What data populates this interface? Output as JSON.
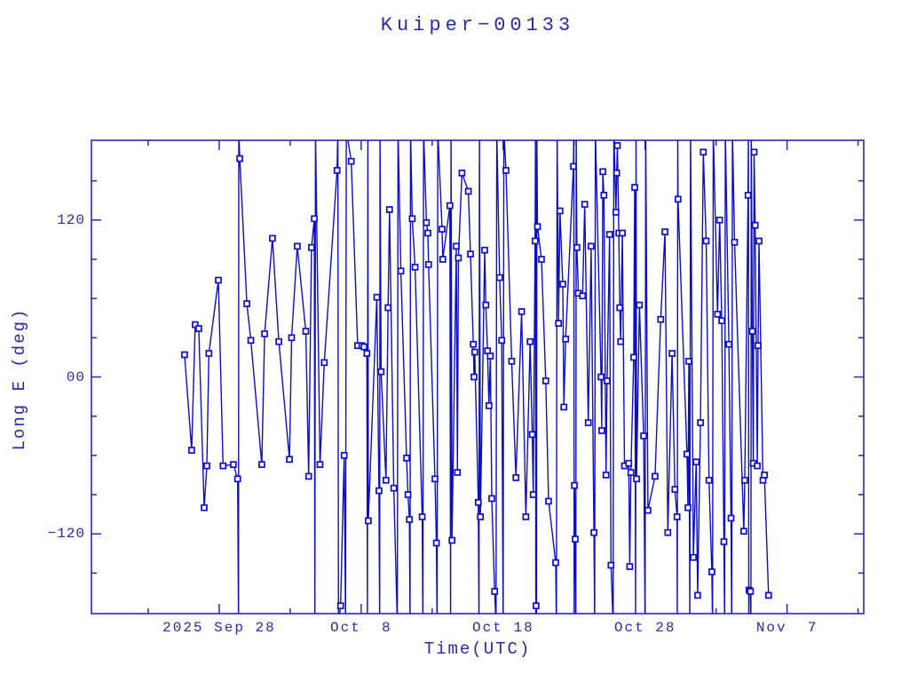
{
  "title": "Kuiper−00133",
  "colors": {
    "ink": "#2a2aa2",
    "data_line": "#0d0dc6",
    "marker_fill": "#ffffff",
    "background": "#ffffff"
  },
  "chart_data": {
    "type": "line",
    "title": "Kuiper−00133",
    "xlabel": "Time(UTC)",
    "ylabel": "Long E (deg)",
    "grid": false,
    "legend": false,
    "marker": "open-square",
    "x_unit": "days from left axis edge (2025 Sep 19)",
    "xlim": [
      0,
      54.4
    ],
    "ylim": [
      -181,
      181
    ],
    "wrap_boundary_deg": 180,
    "x_major_ticks": [
      {
        "day": 9,
        "label": "2025 Sep 28"
      },
      {
        "day": 19,
        "label": "Oct  8"
      },
      {
        "day": 29,
        "label": "Oct 18"
      },
      {
        "day": 39,
        "label": "Oct 28"
      },
      {
        "day": 49,
        "label": "Nov  7"
      }
    ],
    "x_minor_tick_days": [
      4,
      14,
      24,
      34,
      44,
      54
    ],
    "y_major_ticks": [
      {
        "value": 120,
        "label": "120"
      },
      {
        "value": 0,
        "label": "00"
      },
      {
        "value": -120,
        "label": "−120"
      }
    ],
    "y_minor_tick_values": [
      150,
      90,
      60,
      30,
      -30,
      -60,
      -90,
      -150
    ],
    "points": [
      [
        6.56,
        17
      ],
      [
        7.06,
        -56
      ],
      [
        7.31,
        40
      ],
      [
        7.56,
        37
      ],
      [
        7.94,
        -100
      ],
      [
        8.13,
        -68
      ],
      [
        8.27,
        18
      ],
      [
        8.94,
        74
      ],
      [
        9.27,
        -68
      ],
      [
        10.0,
        -67
      ],
      [
        10.3,
        -78
      ],
      [
        10.36,
        -189
      ],
      [
        10.38,
        189
      ],
      [
        10.45,
        167
      ],
      [
        10.95,
        56
      ],
      [
        11.23,
        28
      ],
      [
        12.0,
        -67
      ],
      [
        12.2,
        33
      ],
      [
        12.75,
        106
      ],
      [
        13.2,
        27
      ],
      [
        13.95,
        -63
      ],
      [
        14.1,
        30
      ],
      [
        14.5,
        100
      ],
      [
        15.1,
        35
      ],
      [
        15.3,
        -76
      ],
      [
        15.5,
        99
      ],
      [
        15.7,
        121
      ],
      [
        15.74,
        -189
      ],
      [
        15.78,
        189
      ],
      [
        16.1,
        -67
      ],
      [
        16.4,
        11
      ],
      [
        17.3,
        158
      ],
      [
        17.36,
        189
      ],
      [
        17.4,
        -189
      ],
      [
        17.55,
        -175
      ],
      [
        17.8,
        -60
      ],
      [
        17.9,
        -189
      ],
      [
        17.95,
        189
      ],
      [
        18.3,
        165
      ],
      [
        18.75,
        24
      ],
      [
        19.05,
        24
      ],
      [
        19.2,
        23
      ],
      [
        19.4,
        18
      ],
      [
        19.44,
        -189
      ],
      [
        19.47,
        189
      ],
      [
        19.5,
        -110
      ],
      [
        20.1,
        61
      ],
      [
        20.25,
        -87
      ],
      [
        20.3,
        -189
      ],
      [
        20.33,
        189
      ],
      [
        20.4,
        4
      ],
      [
        20.75,
        -79
      ],
      [
        20.9,
        53
      ],
      [
        21.0,
        128
      ],
      [
        21.3,
        -85
      ],
      [
        21.55,
        -189
      ],
      [
        21.6,
        189
      ],
      [
        21.8,
        81
      ],
      [
        22.2,
        -62
      ],
      [
        22.3,
        -90
      ],
      [
        22.4,
        -109
      ],
      [
        22.44,
        -189
      ],
      [
        22.48,
        189
      ],
      [
        22.6,
        121
      ],
      [
        22.8,
        84
      ],
      [
        23.3,
        -107
      ],
      [
        23.35,
        -189
      ],
      [
        23.4,
        189
      ],
      [
        23.6,
        118
      ],
      [
        23.7,
        110
      ],
      [
        23.75,
        86
      ],
      [
        24.2,
        -78
      ],
      [
        24.3,
        -127
      ],
      [
        24.35,
        -189
      ],
      [
        24.4,
        189
      ],
      [
        24.7,
        113
      ],
      [
        24.75,
        90
      ],
      [
        25.25,
        131
      ],
      [
        25.3,
        -189
      ],
      [
        25.33,
        189
      ],
      [
        25.4,
        -125
      ],
      [
        25.7,
        100
      ],
      [
        25.78,
        -73
      ],
      [
        25.85,
        91
      ],
      [
        26.1,
        156
      ],
      [
        26.55,
        142
      ],
      [
        26.7,
        94
      ],
      [
        26.9,
        25
      ],
      [
        26.95,
        0
      ],
      [
        27.0,
        19
      ],
      [
        27.25,
        -96
      ],
      [
        27.3,
        -189
      ],
      [
        27.33,
        189
      ],
      [
        27.4,
        -107
      ],
      [
        27.7,
        97
      ],
      [
        27.78,
        55
      ],
      [
        27.9,
        20
      ],
      [
        28.0,
        -22
      ],
      [
        28.1,
        16
      ],
      [
        28.2,
        -93
      ],
      [
        28.4,
        -164
      ],
      [
        28.5,
        -189
      ],
      [
        28.55,
        189
      ],
      [
        28.75,
        76
      ],
      [
        28.9,
        28
      ],
      [
        29.0,
        -189
      ],
      [
        29.05,
        189
      ],
      [
        29.2,
        158
      ],
      [
        29.6,
        12
      ],
      [
        29.9,
        -77
      ],
      [
        30.3,
        50
      ],
      [
        30.6,
        -107
      ],
      [
        30.9,
        27
      ],
      [
        31.05,
        -44
      ],
      [
        31.12,
        -90
      ],
      [
        31.25,
        104
      ],
      [
        31.28,
        189
      ],
      [
        31.3,
        -189
      ],
      [
        31.32,
        -175
      ],
      [
        31.35,
        -189
      ],
      [
        31.38,
        189
      ],
      [
        31.42,
        115
      ],
      [
        31.7,
        90
      ],
      [
        32.0,
        -3
      ],
      [
        32.2,
        -95
      ],
      [
        32.7,
        -142
      ],
      [
        32.75,
        -189
      ],
      [
        32.8,
        189
      ],
      [
        32.9,
        41
      ],
      [
        33.0,
        127
      ],
      [
        33.2,
        71
      ],
      [
        33.28,
        -23
      ],
      [
        33.4,
        29
      ],
      [
        33.95,
        161
      ],
      [
        33.98,
        189
      ],
      [
        34.0,
        -189
      ],
      [
        34.02,
        -83
      ],
      [
        34.08,
        -124
      ],
      [
        34.12,
        -189
      ],
      [
        34.15,
        189
      ],
      [
        34.2,
        99
      ],
      [
        34.3,
        64
      ],
      [
        34.6,
        62
      ],
      [
        34.75,
        132
      ],
      [
        35.0,
        -35
      ],
      [
        35.2,
        100
      ],
      [
        35.4,
        -119
      ],
      [
        35.45,
        -189
      ],
      [
        35.5,
        189
      ],
      [
        35.9,
        0
      ],
      [
        35.95,
        -41
      ],
      [
        36.02,
        157
      ],
      [
        36.1,
        139
      ],
      [
        36.25,
        -75
      ],
      [
        36.32,
        -3
      ],
      [
        36.5,
        109
      ],
      [
        36.6,
        -144
      ],
      [
        36.75,
        -189
      ],
      [
        36.8,
        189
      ],
      [
        36.95,
        126
      ],
      [
        37.0,
        156
      ],
      [
        37.05,
        177
      ],
      [
        37.15,
        110
      ],
      [
        37.22,
        53
      ],
      [
        37.28,
        27
      ],
      [
        37.4,
        110
      ],
      [
        37.55,
        -68
      ],
      [
        37.85,
        -66
      ],
      [
        37.92,
        -145
      ],
      [
        38.0,
        -73
      ],
      [
        38.2,
        15
      ],
      [
        38.27,
        145
      ],
      [
        38.33,
        -189
      ],
      [
        38.36,
        189
      ],
      [
        38.4,
        -78
      ],
      [
        38.6,
        55
      ],
      [
        38.9,
        -45
      ],
      [
        39.0,
        -189
      ],
      [
        39.04,
        189
      ],
      [
        39.2,
        -102
      ],
      [
        39.7,
        -76
      ],
      [
        40.1,
        44
      ],
      [
        40.4,
        111
      ],
      [
        40.6,
        -119
      ],
      [
        40.9,
        18
      ],
      [
        41.1,
        -86
      ],
      [
        41.25,
        -107
      ],
      [
        41.27,
        -189
      ],
      [
        41.3,
        189
      ],
      [
        41.32,
        136
      ],
      [
        41.95,
        -59
      ],
      [
        42.02,
        -100
      ],
      [
        42.08,
        12
      ],
      [
        42.15,
        -189
      ],
      [
        42.2,
        189
      ],
      [
        42.4,
        -138
      ],
      [
        42.6,
        -65
      ],
      [
        42.7,
        -167
      ],
      [
        42.9,
        -35
      ],
      [
        43.1,
        172
      ],
      [
        43.3,
        104
      ],
      [
        43.5,
        -79
      ],
      [
        43.7,
        -149
      ],
      [
        43.75,
        -189
      ],
      [
        43.8,
        189
      ],
      [
        44.1,
        48
      ],
      [
        44.25,
        120
      ],
      [
        44.4,
        43
      ],
      [
        44.55,
        -126
      ],
      [
        44.6,
        -189
      ],
      [
        44.65,
        189
      ],
      [
        44.9,
        25
      ],
      [
        45.05,
        -108
      ],
      [
        45.1,
        -189
      ],
      [
        45.15,
        189
      ],
      [
        45.3,
        103
      ],
      [
        45.95,
        -118
      ],
      [
        46.02,
        -79
      ],
      [
        46.25,
        139
      ],
      [
        46.28,
        189
      ],
      [
        46.3,
        -189
      ],
      [
        46.32,
        -163
      ],
      [
        46.42,
        -164
      ],
      [
        46.45,
        -189
      ],
      [
        46.48,
        189
      ],
      [
        46.55,
        35
      ],
      [
        46.62,
        -66
      ],
      [
        46.68,
        172
      ],
      [
        46.75,
        116
      ],
      [
        46.9,
        -68
      ],
      [
        46.96,
        24
      ],
      [
        47.02,
        104
      ],
      [
        47.3,
        -79
      ],
      [
        47.4,
        -75
      ],
      [
        47.7,
        -167
      ]
    ]
  }
}
